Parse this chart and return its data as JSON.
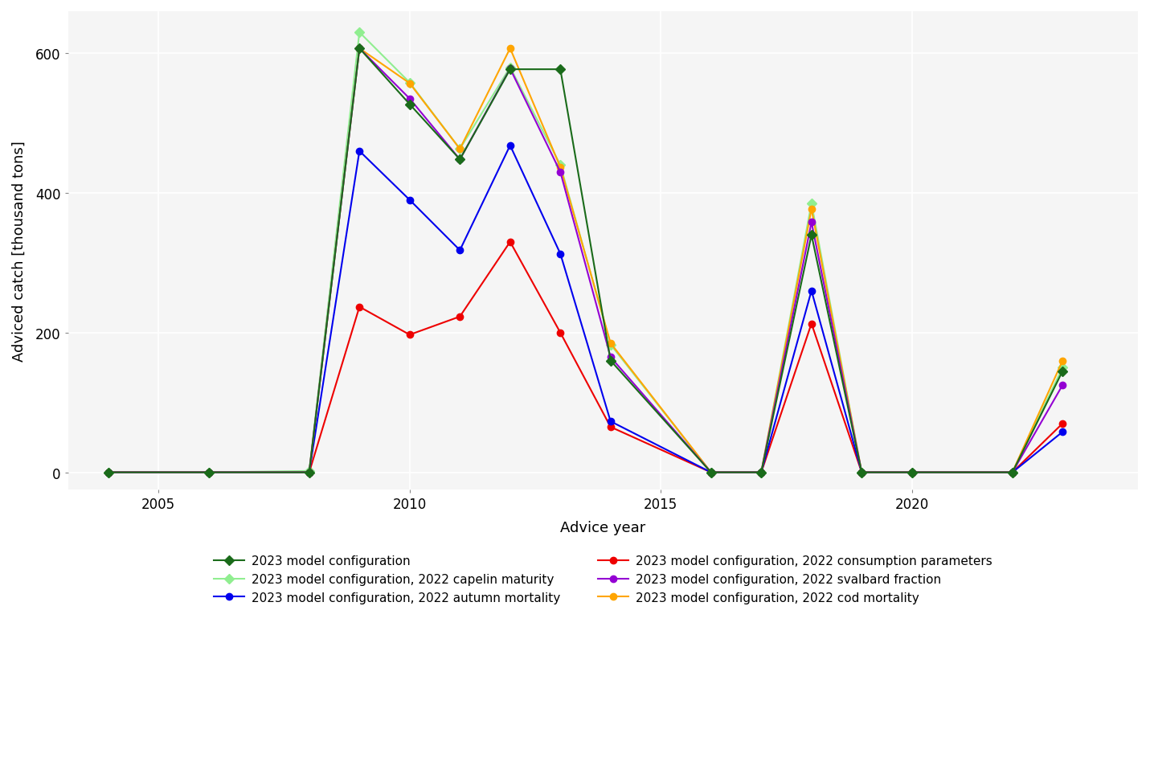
{
  "series": [
    {
      "name": "2023 model configuration",
      "color": "#1a6b1a",
      "marker": "D",
      "markersize": 6,
      "linewidth": 1.5,
      "zorder": 6,
      "years": [
        2004,
        2006,
        2008,
        2009,
        2010,
        2011,
        2012,
        2013,
        2014,
        2016,
        2017,
        2018,
        2019,
        2020,
        2022,
        2023
      ],
      "values": [
        0,
        0,
        0,
        607,
        527,
        448,
        577,
        577,
        160,
        0,
        0,
        340,
        0,
        0,
        0,
        145
      ]
    },
    {
      "name": "2023 model configuration, 2022 autumn mortality",
      "color": "#0000ee",
      "marker": "o",
      "markersize": 6,
      "linewidth": 1.5,
      "zorder": 4,
      "years": [
        2004,
        2006,
        2008,
        2009,
        2010,
        2011,
        2012,
        2013,
        2014,
        2016,
        2017,
        2018,
        2019,
        2020,
        2022,
        2023
      ],
      "values": [
        0,
        0,
        0,
        460,
        390,
        318,
        468,
        313,
        73,
        0,
        0,
        260,
        0,
        0,
        0,
        58
      ]
    },
    {
      "name": "2023 model configuration, 2022 svalbard fraction",
      "color": "#9400d3",
      "marker": "o",
      "markersize": 6,
      "linewidth": 1.5,
      "zorder": 5,
      "years": [
        2004,
        2006,
        2008,
        2009,
        2010,
        2011,
        2012,
        2013,
        2014,
        2016,
        2017,
        2018,
        2019,
        2020,
        2022,
        2023
      ],
      "values": [
        0,
        0,
        0,
        607,
        535,
        448,
        578,
        430,
        165,
        0,
        0,
        358,
        0,
        0,
        0,
        125
      ]
    },
    {
      "name": "2023 model configuration, 2022 capelin maturity",
      "color": "#90ee90",
      "marker": "D",
      "markersize": 6,
      "linewidth": 1.5,
      "zorder": 3,
      "years": [
        2004,
        2006,
        2008,
        2009,
        2010,
        2011,
        2012,
        2013,
        2014,
        2016,
        2017,
        2018,
        2019,
        2020,
        2022,
        2023
      ],
      "values": [
        0,
        0,
        2,
        630,
        558,
        463,
        580,
        440,
        183,
        0,
        0,
        385,
        0,
        0,
        0,
        150
      ]
    },
    {
      "name": "2023 model configuration, 2022 consumption parameters",
      "color": "#ee0000",
      "marker": "o",
      "markersize": 6,
      "linewidth": 1.5,
      "zorder": 3,
      "years": [
        2004,
        2006,
        2008,
        2009,
        2010,
        2011,
        2012,
        2013,
        2014,
        2016,
        2017,
        2018,
        2019,
        2020,
        2022,
        2023
      ],
      "values": [
        0,
        0,
        0,
        237,
        197,
        223,
        330,
        200,
        65,
        0,
        0,
        213,
        0,
        0,
        0,
        70
      ]
    },
    {
      "name": "2023 model configuration, 2022 cod mortality",
      "color": "#ffa500",
      "marker": "o",
      "markersize": 6,
      "linewidth": 1.5,
      "zorder": 4,
      "years": [
        2004,
        2006,
        2008,
        2009,
        2010,
        2011,
        2012,
        2013,
        2014,
        2016,
        2017,
        2018,
        2019,
        2020,
        2022,
        2023
      ],
      "values": [
        0,
        0,
        0,
        607,
        557,
        463,
        607,
        437,
        185,
        0,
        0,
        377,
        0,
        0,
        0,
        160
      ]
    }
  ],
  "legend_left": [
    "2023 model configuration",
    "2023 model configuration, 2022 autumn mortality",
    "2023 model configuration, 2022 svalbard fraction"
  ],
  "legend_right": [
    "2023 model configuration, 2022 capelin maturity",
    "2023 model configuration, 2022 consumption parameters",
    "2023 model configuration, 2022 cod mortality"
  ],
  "xlabel": "Advice year",
  "ylabel": "Adviced catch [thousand tons]",
  "xlim": [
    2003.2,
    2024.5
  ],
  "ylim": [
    -25,
    660
  ],
  "xticks": [
    2005,
    2010,
    2015,
    2020
  ],
  "yticks": [
    0,
    200,
    400,
    600
  ],
  "background_color": "#ffffff",
  "panel_background": "#f5f5f5",
  "grid_color": "#cccccc"
}
